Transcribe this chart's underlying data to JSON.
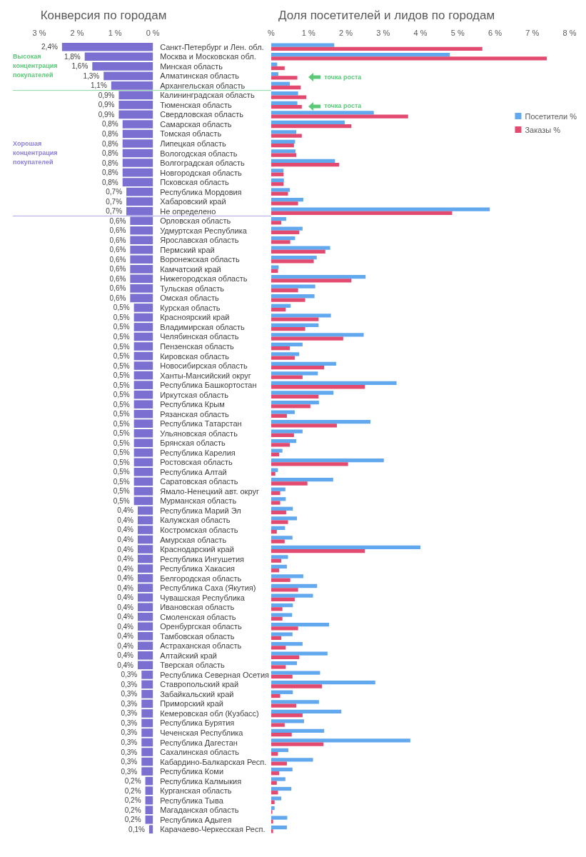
{
  "chart_data": [
    {
      "type": "bar",
      "title": "Конверсия по городам",
      "orientation": "horizontal",
      "categories": [
        "Санкт-Петербург и Лен. обл.",
        "Москва и Московская обл.",
        "Минская область",
        "Алматинская область",
        "Архангельская область",
        "Калининградская область",
        "Тюменская область",
        "Свердловская область",
        "Самарская область",
        "Томская область",
        "Липецкая область",
        "Вологодская область",
        "Волгоградская область",
        "Новгородская область",
        "Псковская область",
        "Республика Мордовия",
        "Хабаровский край",
        "Не определено",
        "Орловская область",
        "Удмуртская Республика",
        "Ярославская область",
        "Пермский край",
        "Воронежская область",
        "Камчатский край",
        "Нижегородская область",
        "Тульская область",
        "Омская область",
        "Курская область",
        "Красноярский край",
        "Владимирская область",
        "Челябинская область",
        "Пензенская область",
        "Кировская область",
        "Новосибирская область",
        "Ханты-Мансийский округ",
        "Республика Башкортостан",
        "Иркутская область",
        "Республика Крым",
        "Рязанская область",
        "Республика Татарстан",
        "Ульяновская область",
        "Брянская область",
        "Республика Карелия",
        "Ростовская область",
        "Республика Алтай",
        "Саратовская область",
        "Ямало-Ненецкий авт. округ",
        "Мурманская область",
        "Республика Марий Эл",
        "Калужская область",
        "Костромская область",
        "Амурская область",
        "Краснодарский край",
        "Республика Ингушетия",
        "Республика Хакасия",
        "Белгородская область",
        "Республика Саха (Якутия)",
        "Чувашская Республика",
        "Ивановская область",
        "Смоленская область",
        "Оренбургская область",
        "Тамбовская область",
        "Астраханская область",
        "Алтайский край",
        "Тверская область",
        "Республика Северная Осетия",
        "Ставропольский край",
        "Забайкальский край",
        "Приморский край",
        "Кемеровская обл (Кузбасс)",
        "Республика Бурятия",
        "Чеченская Республика",
        "Республика Дагестан",
        "Сахалинская область",
        "Кабардино-Балкарская Респ.",
        "Республика Коми",
        "Республика Калмыкия",
        "Курганская область",
        "Республика Тыва",
        "Магаданская область",
        "Республика Адыгея",
        "Карачаево-Черкесская Респ."
      ],
      "values": [
        2.4,
        1.8,
        1.6,
        1.3,
        1.1,
        0.9,
        0.9,
        0.9,
        0.8,
        0.8,
        0.8,
        0.8,
        0.8,
        0.8,
        0.8,
        0.7,
        0.7,
        0.7,
        0.6,
        0.6,
        0.6,
        0.6,
        0.6,
        0.6,
        0.6,
        0.6,
        0.6,
        0.5,
        0.5,
        0.5,
        0.5,
        0.5,
        0.5,
        0.5,
        0.5,
        0.5,
        0.5,
        0.5,
        0.5,
        0.5,
        0.5,
        0.5,
        0.5,
        0.5,
        0.5,
        0.5,
        0.5,
        0.5,
        0.4,
        0.4,
        0.4,
        0.4,
        0.4,
        0.4,
        0.4,
        0.4,
        0.4,
        0.4,
        0.4,
        0.4,
        0.4,
        0.4,
        0.4,
        0.4,
        0.4,
        0.3,
        0.3,
        0.3,
        0.3,
        0.3,
        0.3,
        0.3,
        0.3,
        0.3,
        0.3,
        0.3,
        0.2,
        0.2,
        0.2,
        0.2,
        0.2,
        0.1
      ],
      "value_labels": [
        "2,4%",
        "1,8%",
        "1,6%",
        "1,3%",
        "1,1%",
        "0,9%",
        "0,9%",
        "0,9%",
        "0,8%",
        "0,8%",
        "0,8%",
        "0,8%",
        "0,8%",
        "0,8%",
        "0,8%",
        "0,7%",
        "0,7%",
        "0,7%",
        "0,6%",
        "0,6%",
        "0,6%",
        "0,6%",
        "0,6%",
        "0,6%",
        "0,6%",
        "0,6%",
        "0,6%",
        "0,5%",
        "0,5%",
        "0,5%",
        "0,5%",
        "0,5%",
        "0,5%",
        "0,5%",
        "0,5%",
        "0,5%",
        "0,5%",
        "0,5%",
        "0,5%",
        "0,5%",
        "0,5%",
        "0,5%",
        "0,5%",
        "0,5%",
        "0,5%",
        "0,5%",
        "0,5%",
        "0,5%",
        "0,4%",
        "0,4%",
        "0,4%",
        "0,4%",
        "0,4%",
        "0,4%",
        "0,4%",
        "0,4%",
        "0,4%",
        "0,4%",
        "0,4%",
        "0,4%",
        "0,4%",
        "0,4%",
        "0,4%",
        "0,4%",
        "0,4%",
        "0,3%",
        "0,3%",
        "0,3%",
        "0,3%",
        "0,3%",
        "0,3%",
        "0,3%",
        "0,3%",
        "0,3%",
        "0,3%",
        "0,3%",
        "0,2%",
        "0,2%",
        "0,2%",
        "0,2%",
        "0,2%",
        "0,1%"
      ],
      "color": "#7b6fd1",
      "xlim": [
        3,
        0
      ],
      "xticks": [
        {
          "value": 3,
          "label": "3 %"
        },
        {
          "value": 2,
          "label": "2 %"
        },
        {
          "value": 1,
          "label": "1 %"
        },
        {
          "value": 0,
          "label": "0 %"
        }
      ],
      "ref_lines": [
        {
          "axis": "y",
          "value": "Архангельская область",
          "label": "Высокая концентрация покупателей",
          "color": "#5cc878"
        },
        {
          "axis": "y",
          "value": "Не определено",
          "label": "Хорошая концентрация покупателей",
          "color": "#8a7fd8"
        }
      ]
    },
    {
      "type": "bar",
      "title": "Доля посетителей и лидов по городам",
      "orientation": "horizontal",
      "tick_labels": "x",
      "legend": "right",
      "categories": [
        null,
        null,
        null,
        null,
        null,
        null,
        null,
        null,
        null,
        null,
        null,
        null,
        null,
        null,
        null,
        null,
        null,
        null,
        null,
        null,
        null,
        null,
        null,
        null,
        null,
        null,
        null,
        null,
        null,
        null,
        null,
        null,
        null,
        null,
        null,
        null,
        null,
        null,
        null,
        null,
        null,
        null,
        null,
        null,
        null,
        null,
        null,
        null,
        null,
        null,
        null,
        null,
        null,
        null,
        null,
        null,
        null,
        null,
        null,
        null,
        null,
        null,
        null,
        null,
        null,
        null,
        null,
        null,
        null,
        null,
        null,
        null,
        null,
        null,
        null,
        null,
        null,
        null,
        null,
        null,
        null,
        null
      ],
      "series": [
        {
          "name": "Посетители %",
          "color": "#62a8ee",
          "values": [
            1.69,
            4.79,
            0.16,
            0.19,
            0.5,
            0.72,
            0.7,
            2.75,
            1.97,
            0.67,
            0.64,
            0.65,
            1.71,
            0.33,
            0.34,
            0.5,
            0.86,
            5.86,
            0.4,
            0.84,
            0.64,
            1.58,
            1.22,
            0.2,
            2.53,
            1.18,
            1.16,
            0.52,
            1.6,
            1.27,
            2.48,
            0.84,
            0.75,
            1.74,
            1.25,
            3.36,
            1.67,
            1.28,
            0.63,
            2.66,
            0.84,
            0.67,
            0.3,
            3.02,
            0.18,
            1.66,
            0.38,
            0.39,
            0.58,
            0.69,
            0.37,
            0.57,
            4.0,
            0.45,
            0.42,
            0.86,
            1.23,
            1.12,
            0.58,
            0.56,
            1.55,
            0.57,
            0.84,
            1.51,
            0.69,
            1.31,
            2.79,
            0.58,
            1.28,
            1.88,
            0.88,
            1.42,
            3.73,
            0.46,
            1.12,
            0.57,
            0.38,
            0.54,
            0.27,
            0.09,
            0.43,
            0.42
          ]
        },
        {
          "name": "Заказы %",
          "color": "#e34a6f",
          "values": [
            5.66,
            7.39,
            0.36,
            0.7,
            0.79,
            0.94,
            0.82,
            3.67,
            2.15,
            0.82,
            0.61,
            0.67,
            1.82,
            0.33,
            0.33,
            0.45,
            0.72,
            4.85,
            0.27,
            0.75,
            0.51,
            1.45,
            1.14,
            0.18,
            2.15,
            0.72,
            0.91,
            0.39,
            1.27,
            0.91,
            1.93,
            0.5,
            0.63,
            1.42,
            0.84,
            2.51,
            1.27,
            1.05,
            0.42,
            1.76,
            0.61,
            0.5,
            0.21,
            2.06,
            0.11,
            0.97,
            0.24,
            0.24,
            0.4,
            0.45,
            0.15,
            0.36,
            2.51,
            0.27,
            0.21,
            0.51,
            0.72,
            0.63,
            0.3,
            0.3,
            0.72,
            0.27,
            0.39,
            0.75,
            0.39,
            0.57,
            1.36,
            0.24,
            0.67,
            0.84,
            0.36,
            0.55,
            1.4,
            0.18,
            0.42,
            0.21,
            0.15,
            0.18,
            0.09,
            0.03,
            0.05,
            0.05
          ]
        }
      ],
      "xlim": [
        0,
        8
      ],
      "xticks": [
        {
          "value": 0,
          "label": "%"
        },
        {
          "value": 1,
          "label": "1 %"
        },
        {
          "value": 2,
          "label": "2 %"
        },
        {
          "value": 3,
          "label": "3 %"
        },
        {
          "value": 4,
          "label": "4 %"
        },
        {
          "value": 5,
          "label": "5 %"
        },
        {
          "value": 6,
          "label": "6 %"
        },
        {
          "value": 7,
          "label": "7 %"
        },
        {
          "value": 8,
          "label": "8 %"
        }
      ],
      "annotations": [
        "точка роста",
        "точка роста"
      ]
    }
  ]
}
